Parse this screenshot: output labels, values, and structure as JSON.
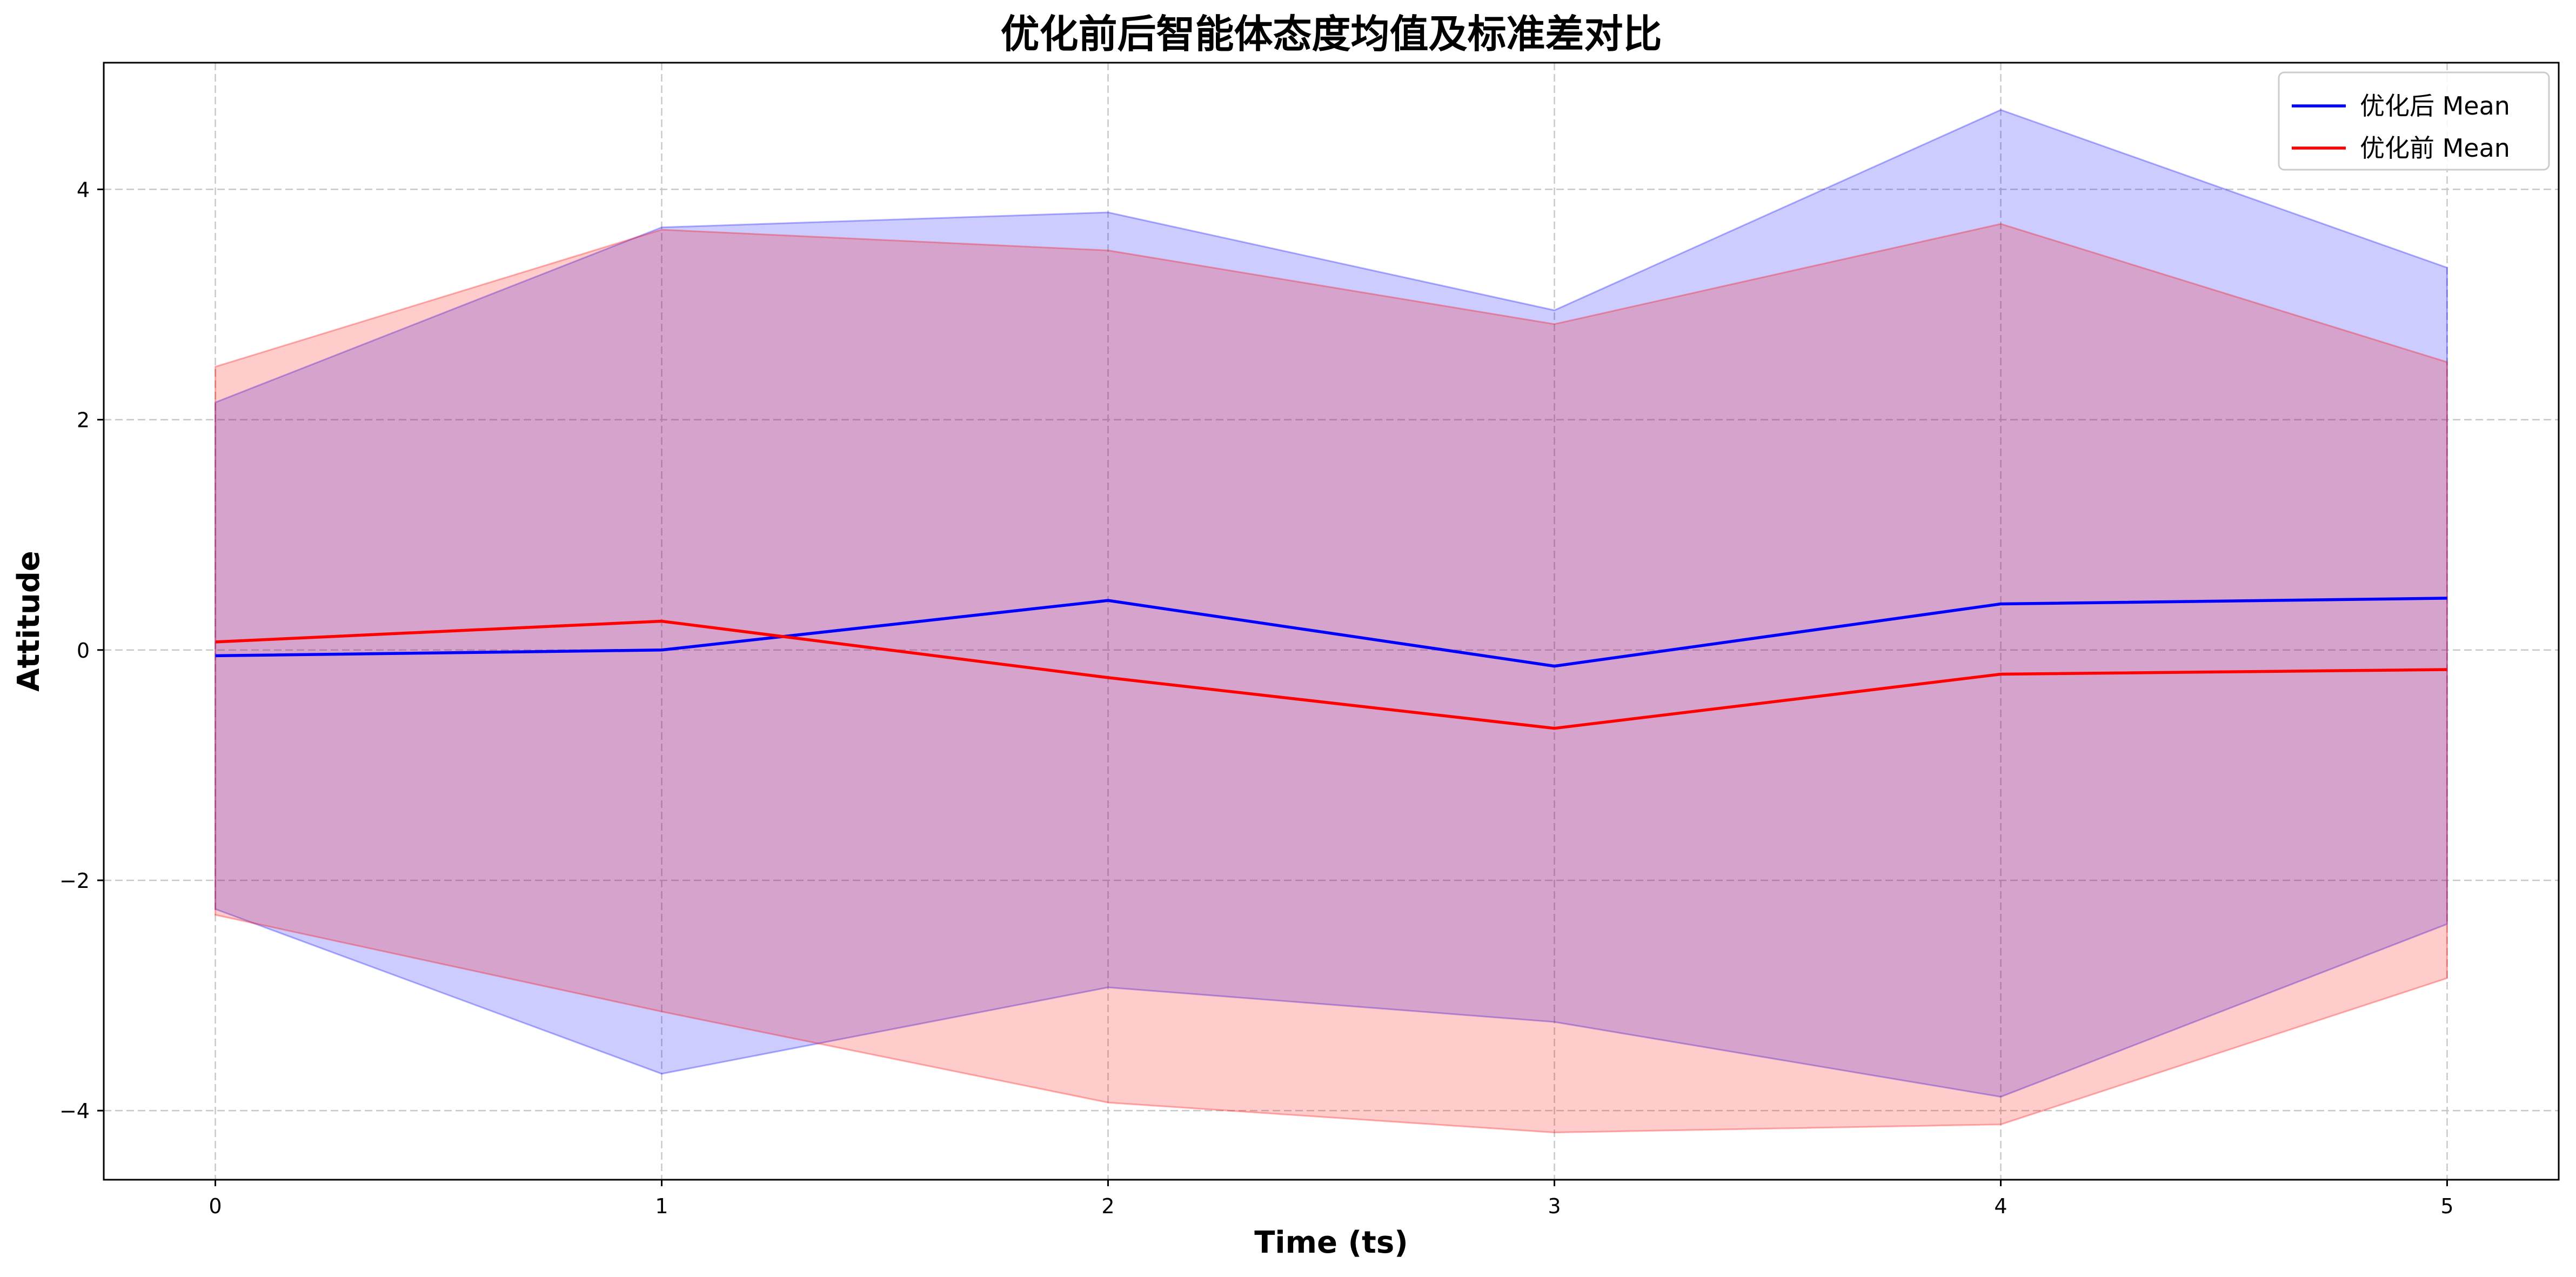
{
  "chart_data": {
    "type": "line",
    "title": "优化前后智能体态度均值及标准差对比",
    "xlabel": "Time (ts)",
    "ylabel": "Attitude",
    "x": [
      0,
      1,
      2,
      3,
      4,
      5
    ],
    "xlim": [
      -0.25,
      5.25
    ],
    "ylim": [
      -4.6,
      5.1
    ],
    "xticks": [
      0,
      1,
      2,
      3,
      4,
      5
    ],
    "yticks": [
      -4,
      -2,
      0,
      2,
      4
    ],
    "ytick_labels": [
      "−4",
      "−2",
      "0",
      "2",
      "4"
    ],
    "grid": true,
    "grid_style": "dashed",
    "legend_position": "top-right",
    "series": [
      {
        "name": "优化后 Mean",
        "color": "#0000ff",
        "fill_color": "#0000ff",
        "mean": [
          -0.05,
          0.0,
          0.43,
          -0.14,
          0.4,
          0.45
        ],
        "upper": [
          2.15,
          3.67,
          3.8,
          2.95,
          4.69,
          3.32
        ],
        "lower": [
          -2.25,
          -3.68,
          -2.93,
          -3.23,
          -3.88,
          -2.38
        ]
      },
      {
        "name": "优化前 Mean",
        "color": "#ff0000",
        "fill_color": "#ff0000",
        "mean": [
          0.07,
          0.25,
          -0.24,
          -0.68,
          -0.21,
          -0.17
        ],
        "upper": [
          2.46,
          3.65,
          3.47,
          2.83,
          3.7,
          2.5
        ],
        "lower": [
          -2.3,
          -3.14,
          -3.93,
          -4.19,
          -4.12,
          -2.85
        ]
      }
    ]
  }
}
